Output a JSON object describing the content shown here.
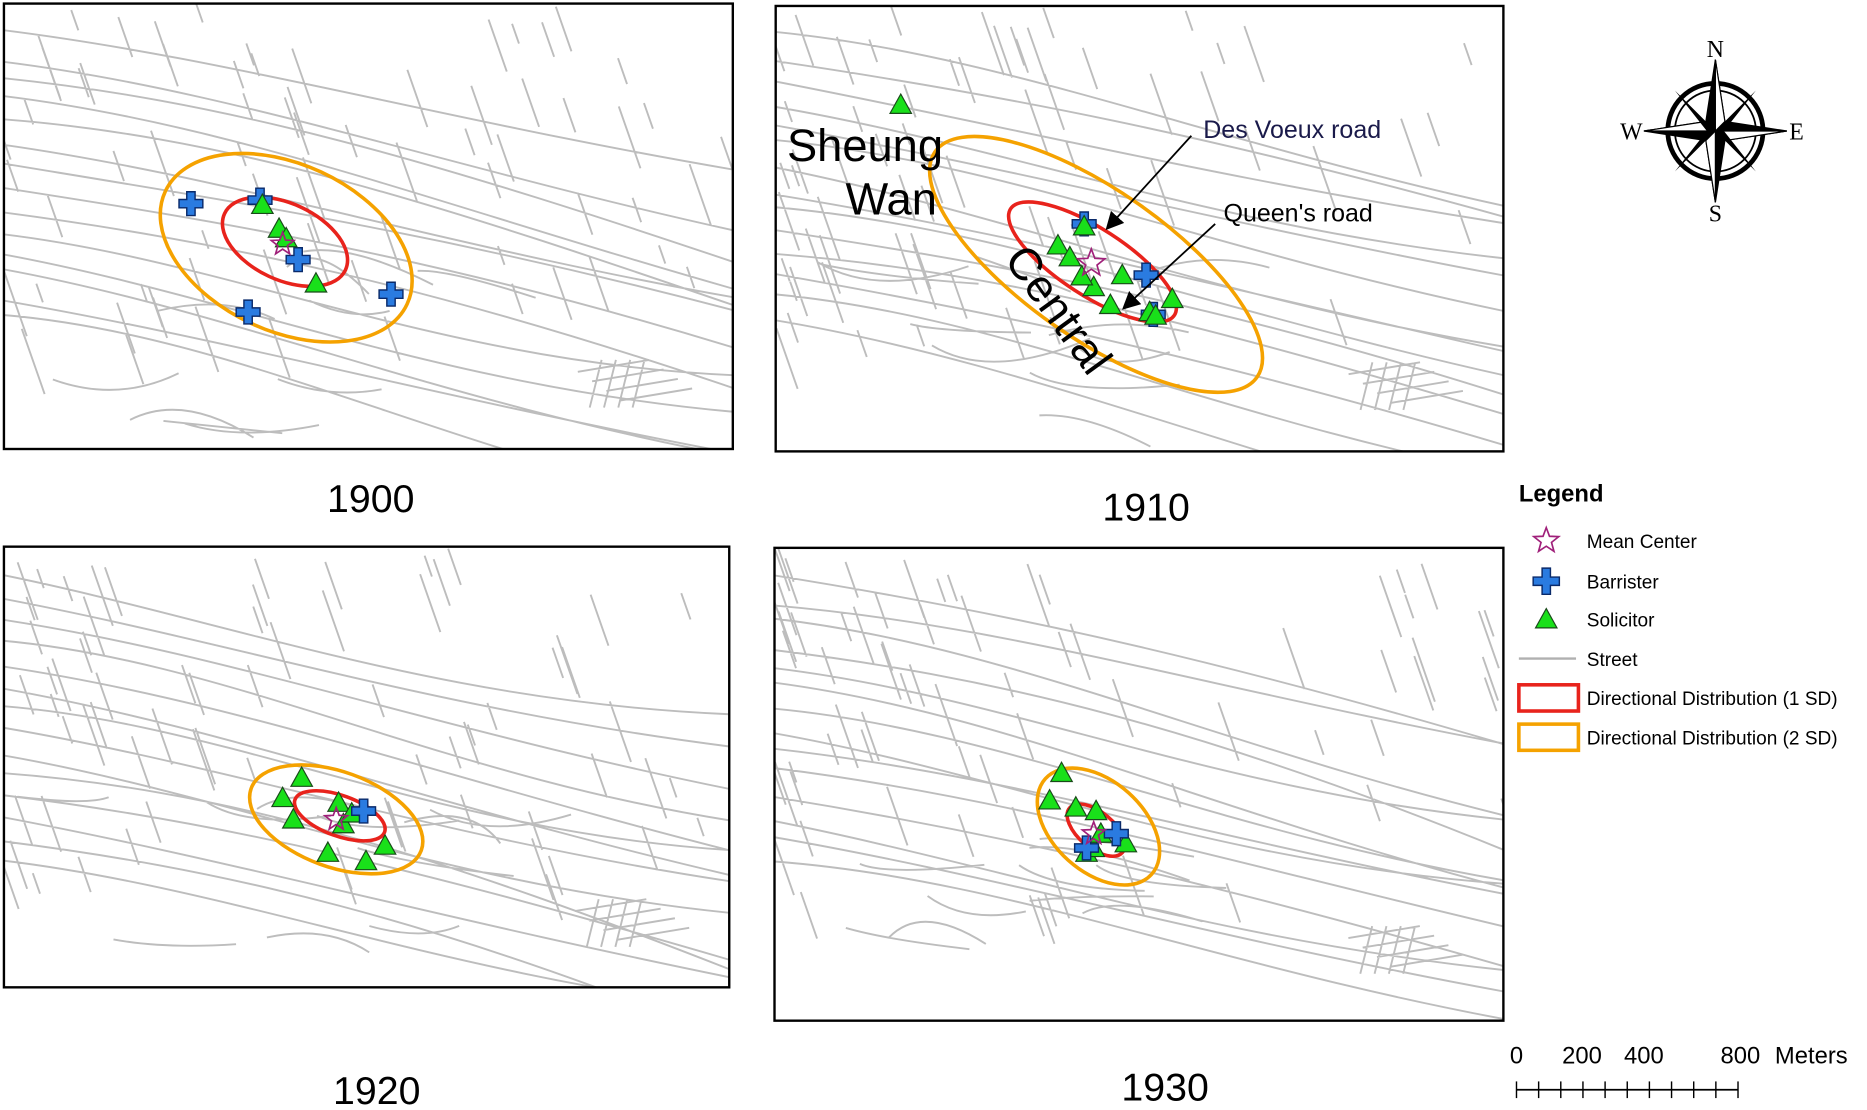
{
  "panels": [
    {
      "year": "1900"
    },
    {
      "year": "1910"
    },
    {
      "year": "1920"
    },
    {
      "year": "1930"
    }
  ],
  "annotations": {
    "sheung_wan": [
      "Sheung",
      "Wan"
    ],
    "central": "Central",
    "des_voeux_road": "Des Voeux road",
    "queens_road": "Queen's road"
  },
  "compass": {
    "north": "N",
    "south": "S",
    "east": "E",
    "west": "W"
  },
  "legend": {
    "title": "Legend",
    "items": [
      "Mean Center",
      "Barrister",
      "Solicitor",
      "Street",
      "Directional Distribution (1 SD)",
      "Directional Distribution (2 SD)"
    ]
  },
  "scale_bar": {
    "labels": [
      "0",
      "200",
      "400",
      "800",
      "Meters"
    ]
  }
}
